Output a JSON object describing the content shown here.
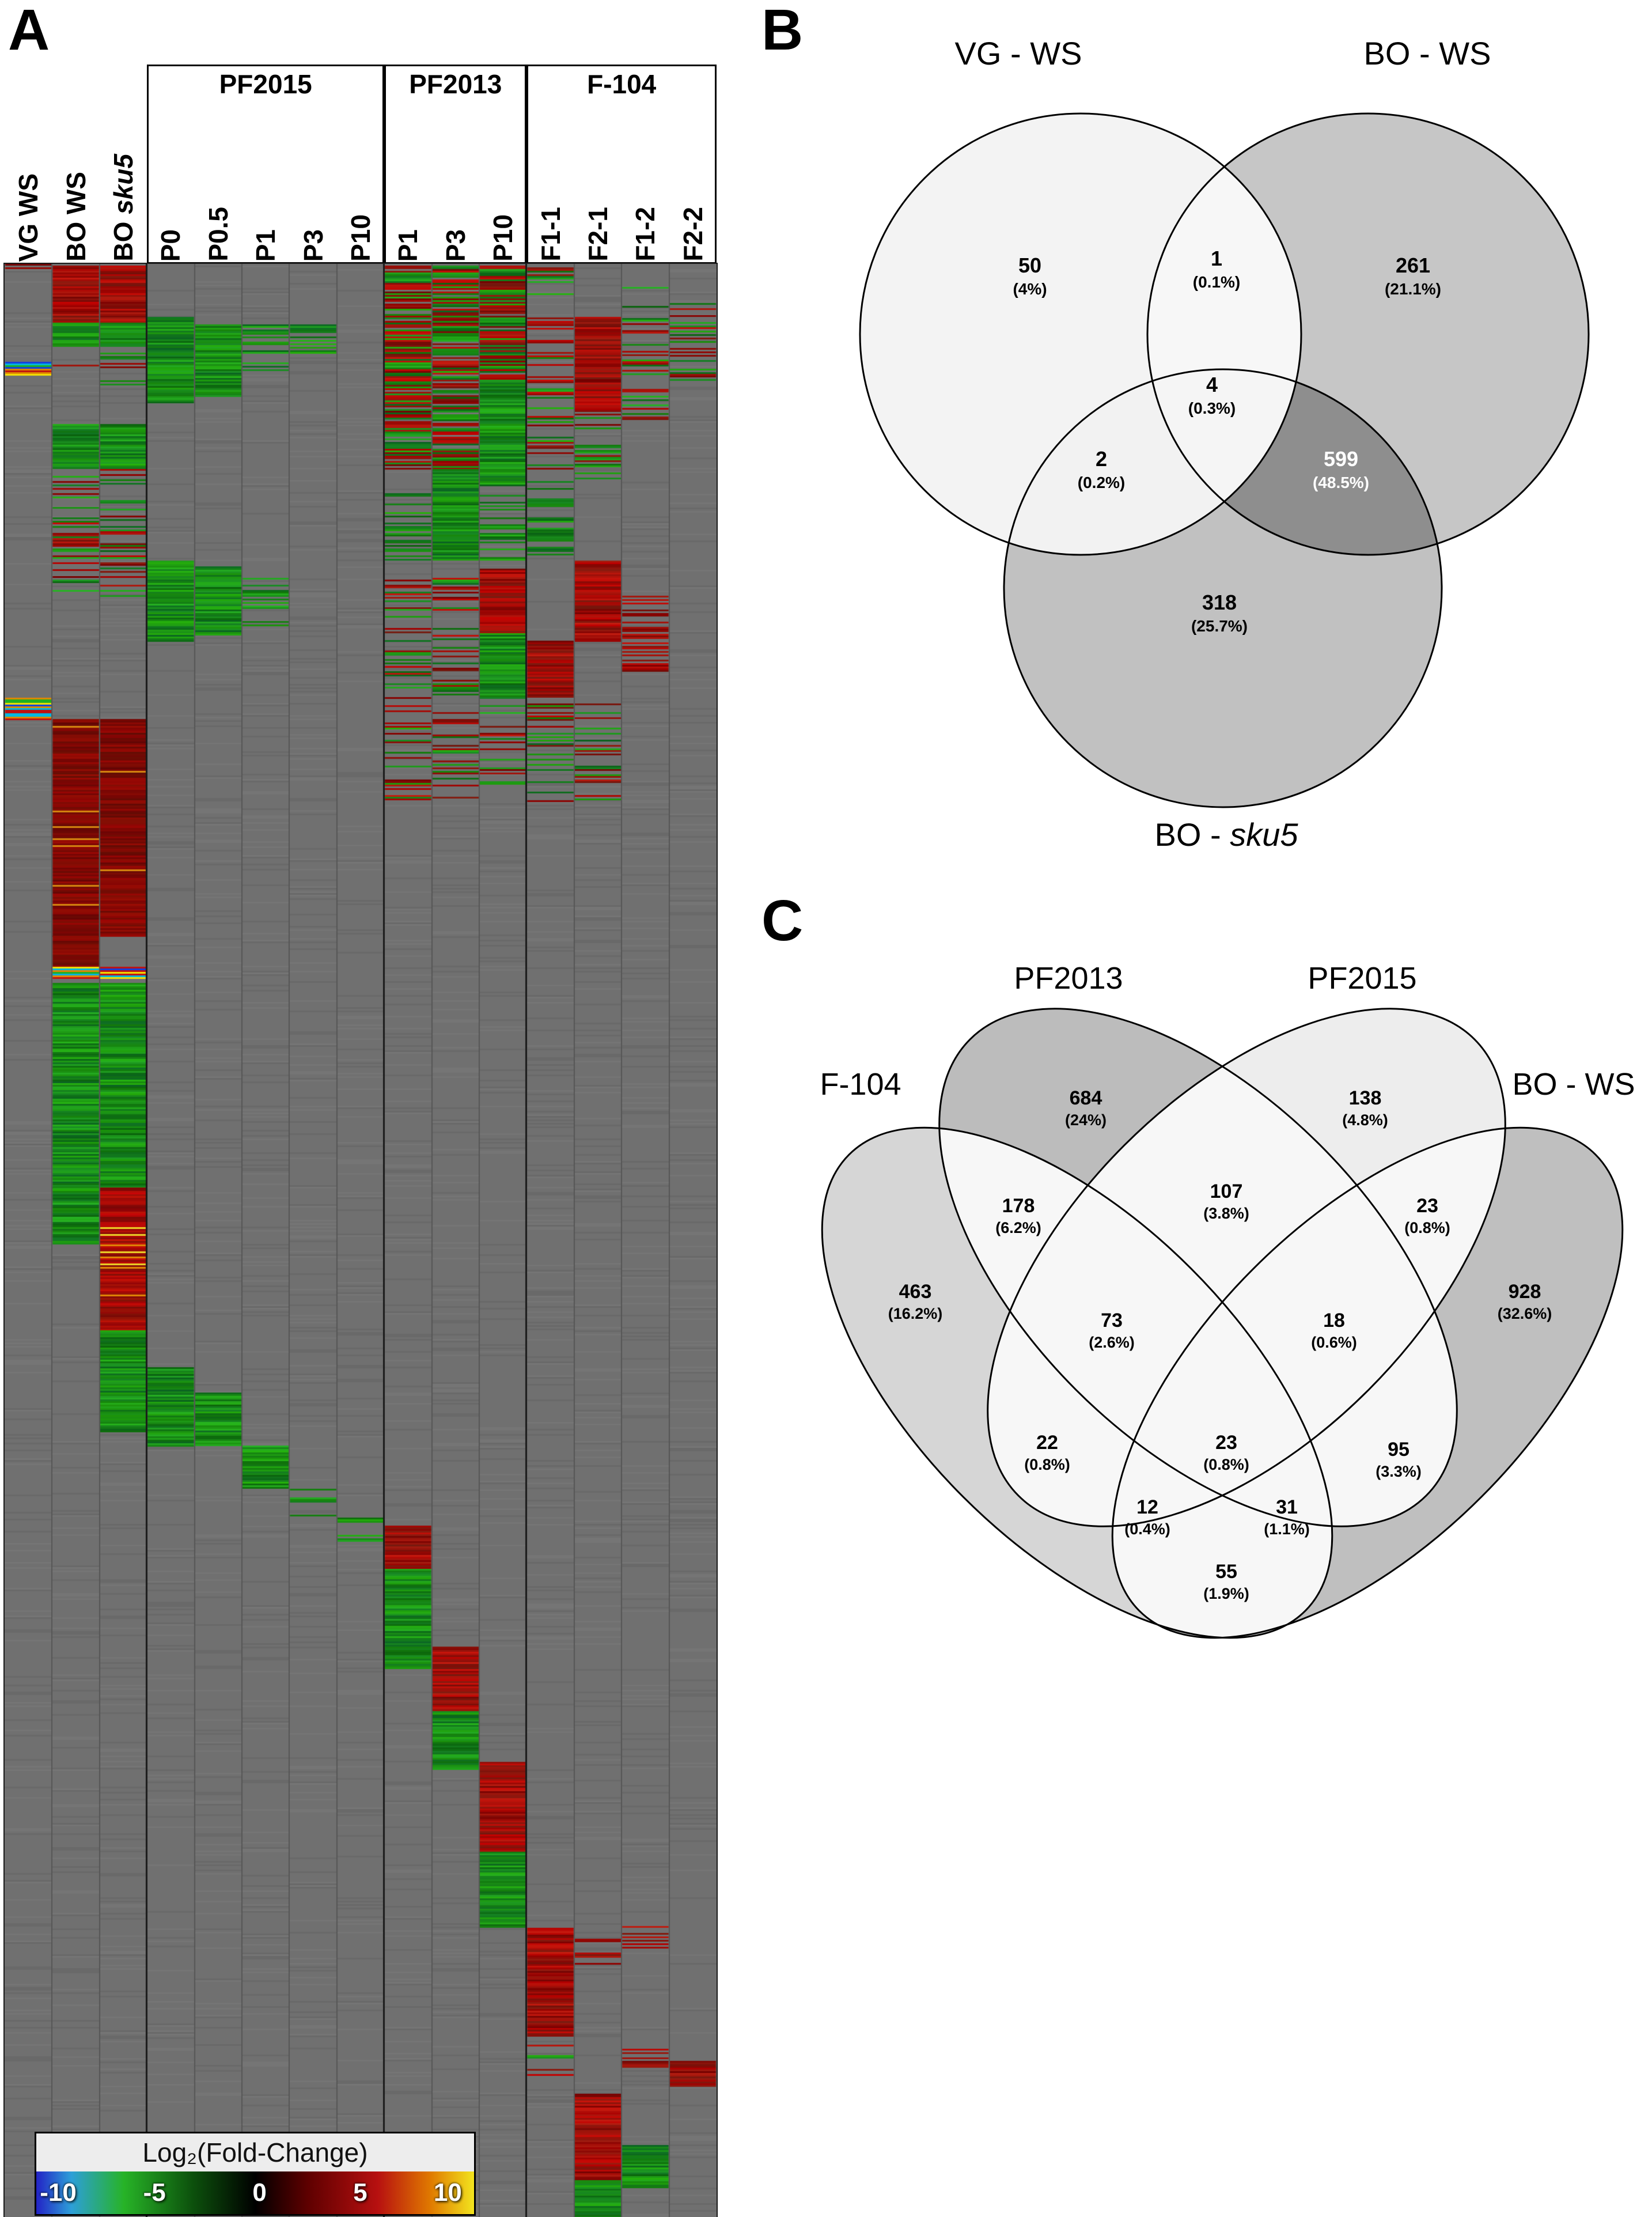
{
  "figure": {
    "panel_a_label": "A",
    "panel_b_label": "B",
    "panel_c_label": "C"
  },
  "chart_data": [
    {
      "type": "heatmap",
      "description": "Clustered heatmap of log2 fold-change values per sample column; colored blocks given as column ranges (c0-c1) and row-fraction ranges (y0-y1) with pattern type t.",
      "base_color": "#707070",
      "column_groups": [
        {
          "label": "PF2015",
          "cols": [
            3,
            7
          ]
        },
        {
          "label": "PF2013",
          "cols": [
            8,
            10
          ]
        },
        {
          "label": "F-104",
          "cols": [
            11,
            14
          ]
        }
      ],
      "columns": [
        {
          "label": "VG WS"
        },
        {
          "label": "BO WS"
        },
        {
          "label": "BO ",
          "italic": "sku5"
        },
        {
          "label": "P0"
        },
        {
          "label": "P0.5"
        },
        {
          "label": "P1"
        },
        {
          "label": "P3"
        },
        {
          "label": "P10"
        },
        {
          "label": "P1"
        },
        {
          "label": "P3"
        },
        {
          "label": "P10"
        },
        {
          "label": "F1-1"
        },
        {
          "label": "F2-1"
        },
        {
          "label": "F1-2"
        },
        {
          "label": "F2-2"
        }
      ],
      "colorbar": {
        "label": "Log₂(Fold-Change)",
        "min": -10,
        "max": 10,
        "ticks": [
          "-10",
          "-5",
          "0",
          "5",
          "10"
        ],
        "gradient": [
          [
            "#2323c6",
            0
          ],
          [
            "#2d9fd8",
            8
          ],
          [
            "#27b327",
            20
          ],
          [
            "#0c4f0c",
            36
          ],
          [
            "#000000",
            50
          ],
          [
            "#5e0000",
            62
          ],
          [
            "#b71010",
            78
          ],
          [
            "#e07900",
            90
          ],
          [
            "#f2e41e",
            100
          ]
        ]
      },
      "blocks": [
        {
          "c0": 0,
          "c1": 0,
          "y0": 0.0,
          "y1": 0.004,
          "t": "sparse-red"
        },
        {
          "c0": 1,
          "c1": 2,
          "y0": 0.001,
          "y1": 0.03,
          "t": "red"
        },
        {
          "c0": 1,
          "c1": 2,
          "y0": 0.03,
          "y1": 0.042,
          "t": "green"
        },
        {
          "c0": 1,
          "c1": 1,
          "y0": 0.042,
          "y1": 0.052,
          "t": "sparse-red"
        },
        {
          "c0": 2,
          "c1": 2,
          "y0": 0.042,
          "y1": 0.062,
          "t": "sparse-mix"
        },
        {
          "c0": 3,
          "c1": 3,
          "y0": 0.027,
          "y1": 0.071,
          "t": "green"
        },
        {
          "c0": 4,
          "c1": 4,
          "y0": 0.031,
          "y1": 0.068,
          "t": "green"
        },
        {
          "c0": 5,
          "c1": 5,
          "y0": 0.031,
          "y1": 0.055,
          "t": "sparse-green"
        },
        {
          "c0": 6,
          "c1": 6,
          "y0": 0.031,
          "y1": 0.046,
          "t": "sparse-green"
        },
        {
          "c0": 8,
          "c1": 9,
          "y0": 0.001,
          "y1": 0.105,
          "t": "mix"
        },
        {
          "c0": 10,
          "c1": 10,
          "y0": 0.001,
          "y1": 0.06,
          "t": "mix"
        },
        {
          "c0": 10,
          "c1": 10,
          "y0": 0.06,
          "y1": 0.112,
          "t": "green"
        },
        {
          "c0": 11,
          "c1": 11,
          "y0": 0.001,
          "y1": 0.105,
          "t": "sparse-mix"
        },
        {
          "c0": 12,
          "c1": 12,
          "y0": 0.027,
          "y1": 0.075,
          "t": "red"
        },
        {
          "c0": 12,
          "c1": 12,
          "y0": 0.075,
          "y1": 0.11,
          "t": "sparse-mix"
        },
        {
          "c0": 13,
          "c1": 13,
          "y0": 0.01,
          "y1": 0.08,
          "t": "sparse-mix"
        },
        {
          "c0": 14,
          "c1": 14,
          "y0": 0.02,
          "y1": 0.06,
          "t": "sparse-mix"
        },
        {
          "c0": 0,
          "c1": 0,
          "y0": 0.05,
          "y1": 0.057,
          "t": "rainbow"
        },
        {
          "c0": 1,
          "c1": 2,
          "y0": 0.082,
          "y1": 0.105,
          "t": "green"
        },
        {
          "c0": 1,
          "c1": 2,
          "y0": 0.105,
          "y1": 0.17,
          "t": "sparse-mix"
        },
        {
          "c0": 8,
          "c1": 8,
          "y0": 0.105,
          "y1": 0.152,
          "t": "sparse-green"
        },
        {
          "c0": 9,
          "c1": 9,
          "y0": 0.105,
          "y1": 0.152,
          "t": "green"
        },
        {
          "c0": 10,
          "c1": 10,
          "y0": 0.112,
          "y1": 0.152,
          "t": "sparse-green"
        },
        {
          "c0": 11,
          "c1": 11,
          "y0": 0.105,
          "y1": 0.15,
          "t": "sparse-green"
        },
        {
          "c0": 3,
          "c1": 3,
          "y0": 0.152,
          "y1": 0.193,
          "t": "green"
        },
        {
          "c0": 4,
          "c1": 4,
          "y0": 0.155,
          "y1": 0.19,
          "t": "green"
        },
        {
          "c0": 5,
          "c1": 5,
          "y0": 0.16,
          "y1": 0.185,
          "t": "sparse-green"
        },
        {
          "c0": 10,
          "c1": 10,
          "y0": 0.156,
          "y1": 0.189,
          "t": "red"
        },
        {
          "c0": 10,
          "c1": 10,
          "y0": 0.189,
          "y1": 0.222,
          "t": "green"
        },
        {
          "c0": 12,
          "c1": 12,
          "y0": 0.152,
          "y1": 0.193,
          "t": "red"
        },
        {
          "c0": 11,
          "c1": 11,
          "y0": 0.193,
          "y1": 0.222,
          "t": "red"
        },
        {
          "c0": 8,
          "c1": 9,
          "y0": 0.16,
          "y1": 0.222,
          "t": "sparse-mix"
        },
        {
          "c0": 13,
          "c1": 13,
          "y0": 0.17,
          "y1": 0.21,
          "t": "sparse-red"
        },
        {
          "c0": 0,
          "c1": 0,
          "y0": 0.222,
          "y1": 0.233,
          "t": "rainbow"
        },
        {
          "c0": 8,
          "c1": 12,
          "y0": 0.225,
          "y1": 0.275,
          "t": "sparse-mix"
        },
        {
          "c0": 1,
          "c1": 2,
          "y0": 0.233,
          "y1": 0.344,
          "t": "darkred"
        },
        {
          "c0": 1,
          "c1": 1,
          "y0": 0.344,
          "y1": 0.36,
          "t": "darkred"
        },
        {
          "c0": 1,
          "c1": 2,
          "y0": 0.36,
          "y1": 0.366,
          "t": "rainbow"
        },
        {
          "c0": 1,
          "c1": 2,
          "y0": 0.368,
          "y1": 0.473,
          "t": "green"
        },
        {
          "c0": 1,
          "c1": 1,
          "y0": 0.473,
          "y1": 0.502,
          "t": "green"
        },
        {
          "c0": 2,
          "c1": 2,
          "y0": 0.473,
          "y1": 0.546,
          "t": "red-orange"
        },
        {
          "c0": 2,
          "c1": 2,
          "y0": 0.546,
          "y1": 0.598,
          "t": "green"
        },
        {
          "c0": 3,
          "c1": 3,
          "y0": 0.565,
          "y1": 0.605,
          "t": "green"
        },
        {
          "c0": 4,
          "c1": 4,
          "y0": 0.578,
          "y1": 0.605,
          "t": "green"
        },
        {
          "c0": 5,
          "c1": 5,
          "y0": 0.605,
          "y1": 0.627,
          "t": "green"
        },
        {
          "c0": 6,
          "c1": 6,
          "y0": 0.627,
          "y1": 0.642,
          "t": "sparse-green"
        },
        {
          "c0": 7,
          "c1": 7,
          "y0": 0.642,
          "y1": 0.654,
          "t": "sparse-green"
        },
        {
          "c0": 8,
          "c1": 8,
          "y0": 0.646,
          "y1": 0.668,
          "t": "red"
        },
        {
          "c0": 8,
          "c1": 8,
          "y0": 0.668,
          "y1": 0.719,
          "t": "green"
        },
        {
          "c0": 9,
          "c1": 9,
          "y0": 0.708,
          "y1": 0.741,
          "t": "red"
        },
        {
          "c0": 9,
          "c1": 9,
          "y0": 0.741,
          "y1": 0.771,
          "t": "green"
        },
        {
          "c0": 10,
          "c1": 10,
          "y0": 0.767,
          "y1": 0.813,
          "t": "red"
        },
        {
          "c0": 10,
          "c1": 10,
          "y0": 0.813,
          "y1": 0.852,
          "t": "green"
        },
        {
          "c0": 11,
          "c1": 11,
          "y0": 0.852,
          "y1": 0.907,
          "t": "red"
        },
        {
          "c0": 11,
          "c1": 11,
          "y0": 0.91,
          "y1": 0.93,
          "t": "sparse-mix"
        },
        {
          "c0": 12,
          "c1": 12,
          "y0": 0.855,
          "y1": 0.872,
          "t": "sparse-red"
        },
        {
          "c0": 13,
          "c1": 13,
          "y0": 0.85,
          "y1": 0.864,
          "t": "sparse-red"
        },
        {
          "c0": 14,
          "c1": 14,
          "y0": 0.92,
          "y1": 0.933,
          "t": "red"
        },
        {
          "c0": 13,
          "c1": 13,
          "y0": 0.914,
          "y1": 0.928,
          "t": "sparse-red"
        },
        {
          "c0": 12,
          "c1": 12,
          "y0": 0.937,
          "y1": 0.981,
          "t": "red"
        },
        {
          "c0": 12,
          "c1": 12,
          "y0": 0.981,
          "y1": 1.0,
          "t": "green"
        },
        {
          "c0": 13,
          "c1": 13,
          "y0": 0.963,
          "y1": 0.985,
          "t": "green"
        }
      ]
    },
    {
      "type": "venn3",
      "sets": [
        {
          "label": "VG - WS"
        },
        {
          "label": "BO - WS"
        },
        {
          "label": "BO - ",
          "italic": "sku5"
        }
      ],
      "regions": [
        {
          "id": "A",
          "value": "50",
          "pct": "(4%)"
        },
        {
          "id": "AB",
          "value": "1",
          "pct": "(0.1%)"
        },
        {
          "id": "B",
          "value": "261",
          "pct": "(21.1%)"
        },
        {
          "id": "ABC",
          "value": "4",
          "pct": "(0.3%)"
        },
        {
          "id": "AC",
          "value": "2",
          "pct": "(0.2%)"
        },
        {
          "id": "BC",
          "value": "599",
          "pct": "(48.5%)",
          "text_color": "#ffffff"
        },
        {
          "id": "C",
          "value": "318",
          "pct": "(25.7%)"
        }
      ]
    },
    {
      "type": "venn4",
      "sets": [
        {
          "label": "F-104"
        },
        {
          "label": "PF2013"
        },
        {
          "label": "PF2015"
        },
        {
          "label": "BO - WS"
        }
      ],
      "regions": [
        {
          "id": "A",
          "value": "463",
          "pct": "(16.2%)"
        },
        {
          "id": "B",
          "value": "684",
          "pct": "(24%)"
        },
        {
          "id": "C",
          "value": "138",
          "pct": "(4.8%)"
        },
        {
          "id": "D",
          "value": "928",
          "pct": "(32.6%)"
        },
        {
          "id": "AB",
          "value": "178",
          "pct": "(6.2%)"
        },
        {
          "id": "BC",
          "value": "107",
          "pct": "(3.8%)"
        },
        {
          "id": "CD",
          "value": "23",
          "pct": "(0.8%)"
        },
        {
          "id": "AC",
          "value": "22",
          "pct": "(0.8%)"
        },
        {
          "id": "BD",
          "value": "95",
          "pct": "(3.3%)"
        },
        {
          "id": "AD",
          "value": "55",
          "pct": "(1.9%)"
        },
        {
          "id": "ABC",
          "value": "73",
          "pct": "(2.6%)"
        },
        {
          "id": "BCD",
          "value": "18",
          "pct": "(0.6%)"
        },
        {
          "id": "ACD",
          "value": "12",
          "pct": "(0.4%)"
        },
        {
          "id": "ABD",
          "value": "31",
          "pct": "(1.1%)"
        },
        {
          "id": "ABCD",
          "value": "23",
          "pct": "(0.8%)"
        }
      ]
    }
  ]
}
